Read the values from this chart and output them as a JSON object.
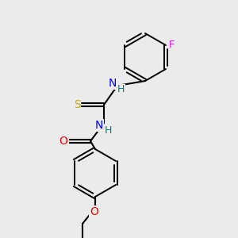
{
  "background_color": "#ebebeb",
  "bond_color": "#000000",
  "atom_colors": {
    "N": "#0000ff",
    "O": "#ff0000",
    "S": "#ccaa00",
    "F": "#ff00ff",
    "H": "#008080",
    "C": "#000000"
  },
  "figsize": [
    3.0,
    3.0
  ],
  "dpi": 100
}
